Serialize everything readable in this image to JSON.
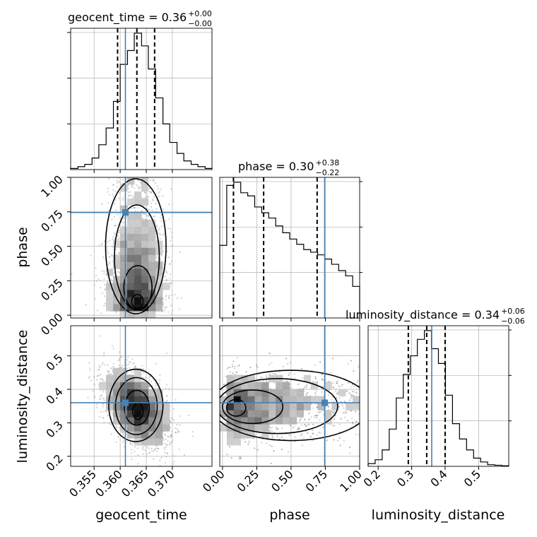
{
  "colors": {
    "truth": "#4682b4",
    "hist": "#000000",
    "grid": "#b0b0b0",
    "scatter": "#9a9a9a",
    "quantile": "#000000"
  },
  "chart_data": {
    "type": "corner",
    "parameters": [
      "geocent_time",
      "phase",
      "luminosity_distance"
    ],
    "titles": [
      {
        "param": "geocent_time",
        "median": "0.36",
        "plus": "+0.00",
        "minus": "−0.00"
      },
      {
        "param": "phase",
        "median": "0.30",
        "plus": "+0.38",
        "minus": "−0.22"
      },
      {
        "param": "luminosity_distance",
        "median": "0.34",
        "plus": "+0.06",
        "minus": "−0.06"
      }
    ],
    "ranges": {
      "geocent_time": [
        0.3505,
        0.3776
      ],
      "phase": [
        -0.02,
        1.0
      ],
      "luminosity_distance": [
        0.17,
        0.59
      ]
    },
    "ticks": {
      "geocent_time": [
        "0.355",
        "0.360",
        "0.365",
        "0.370"
      ],
      "phase": [
        "0.00",
        "0.25",
        "0.50",
        "0.75",
        "1.00"
      ],
      "luminosity_distance": [
        "0.2",
        "0.3",
        "0.4",
        "0.5"
      ],
      "luminosity_distance_y": [
        "0.2",
        "0.3",
        "0.4",
        "0.5"
      ]
    },
    "truths": {
      "geocent_time": 0.361,
      "phase": 0.745,
      "luminosity_distance": 0.36
    },
    "quantiles": {
      "geocent_time": [
        0.3595,
        0.3632,
        0.3666
      ],
      "phase": [
        0.08,
        0.3,
        0.69
      ],
      "luminosity_distance": [
        0.29,
        0.345,
        0.4
      ]
    },
    "histograms": {
      "geocent_time": {
        "edges": [
          0.3505,
          0.3519,
          0.3532,
          0.3546,
          0.3559,
          0.3573,
          0.3587,
          0.36,
          0.3614,
          0.3627,
          0.3641,
          0.3654,
          0.3668,
          0.3682,
          0.3695,
          0.3709,
          0.3722,
          0.3736,
          0.3749,
          0.3763,
          0.3776
        ],
        "counts": [
          2,
          5,
          9,
          20,
          43,
          72,
          118,
          182,
          206,
          236,
          214,
          174,
          124,
          79,
          47,
          28,
          15,
          9,
          5,
          2
        ]
      },
      "phase": {
        "edges": [
          -0.02,
          0.031,
          0.082,
          0.133,
          0.184,
          0.235,
          0.286,
          0.337,
          0.388,
          0.439,
          0.49,
          0.541,
          0.592,
          0.643,
          0.694,
          0.745,
          0.796,
          0.847,
          0.898,
          0.949,
          1.0
        ],
        "counts": [
          138,
          252,
          258,
          238,
          232,
          211,
          200,
          190,
          175,
          162,
          150,
          140,
          130,
          125,
          120,
          112,
          102,
          90,
          80,
          60
        ]
      },
      "luminosity_distance": {
        "edges": [
          0.17,
          0.191,
          0.212,
          0.233,
          0.254,
          0.275,
          0.296,
          0.317,
          0.338,
          0.359,
          0.38,
          0.401,
          0.422,
          0.443,
          0.464,
          0.485,
          0.506,
          0.527,
          0.548,
          0.569,
          0.59
        ],
        "counts": [
          5,
          12,
          30,
          68,
          125,
          168,
          202,
          232,
          248,
          215,
          188,
          130,
          78,
          50,
          30,
          15,
          8,
          3,
          2,
          1
        ]
      }
    },
    "grid": true
  }
}
